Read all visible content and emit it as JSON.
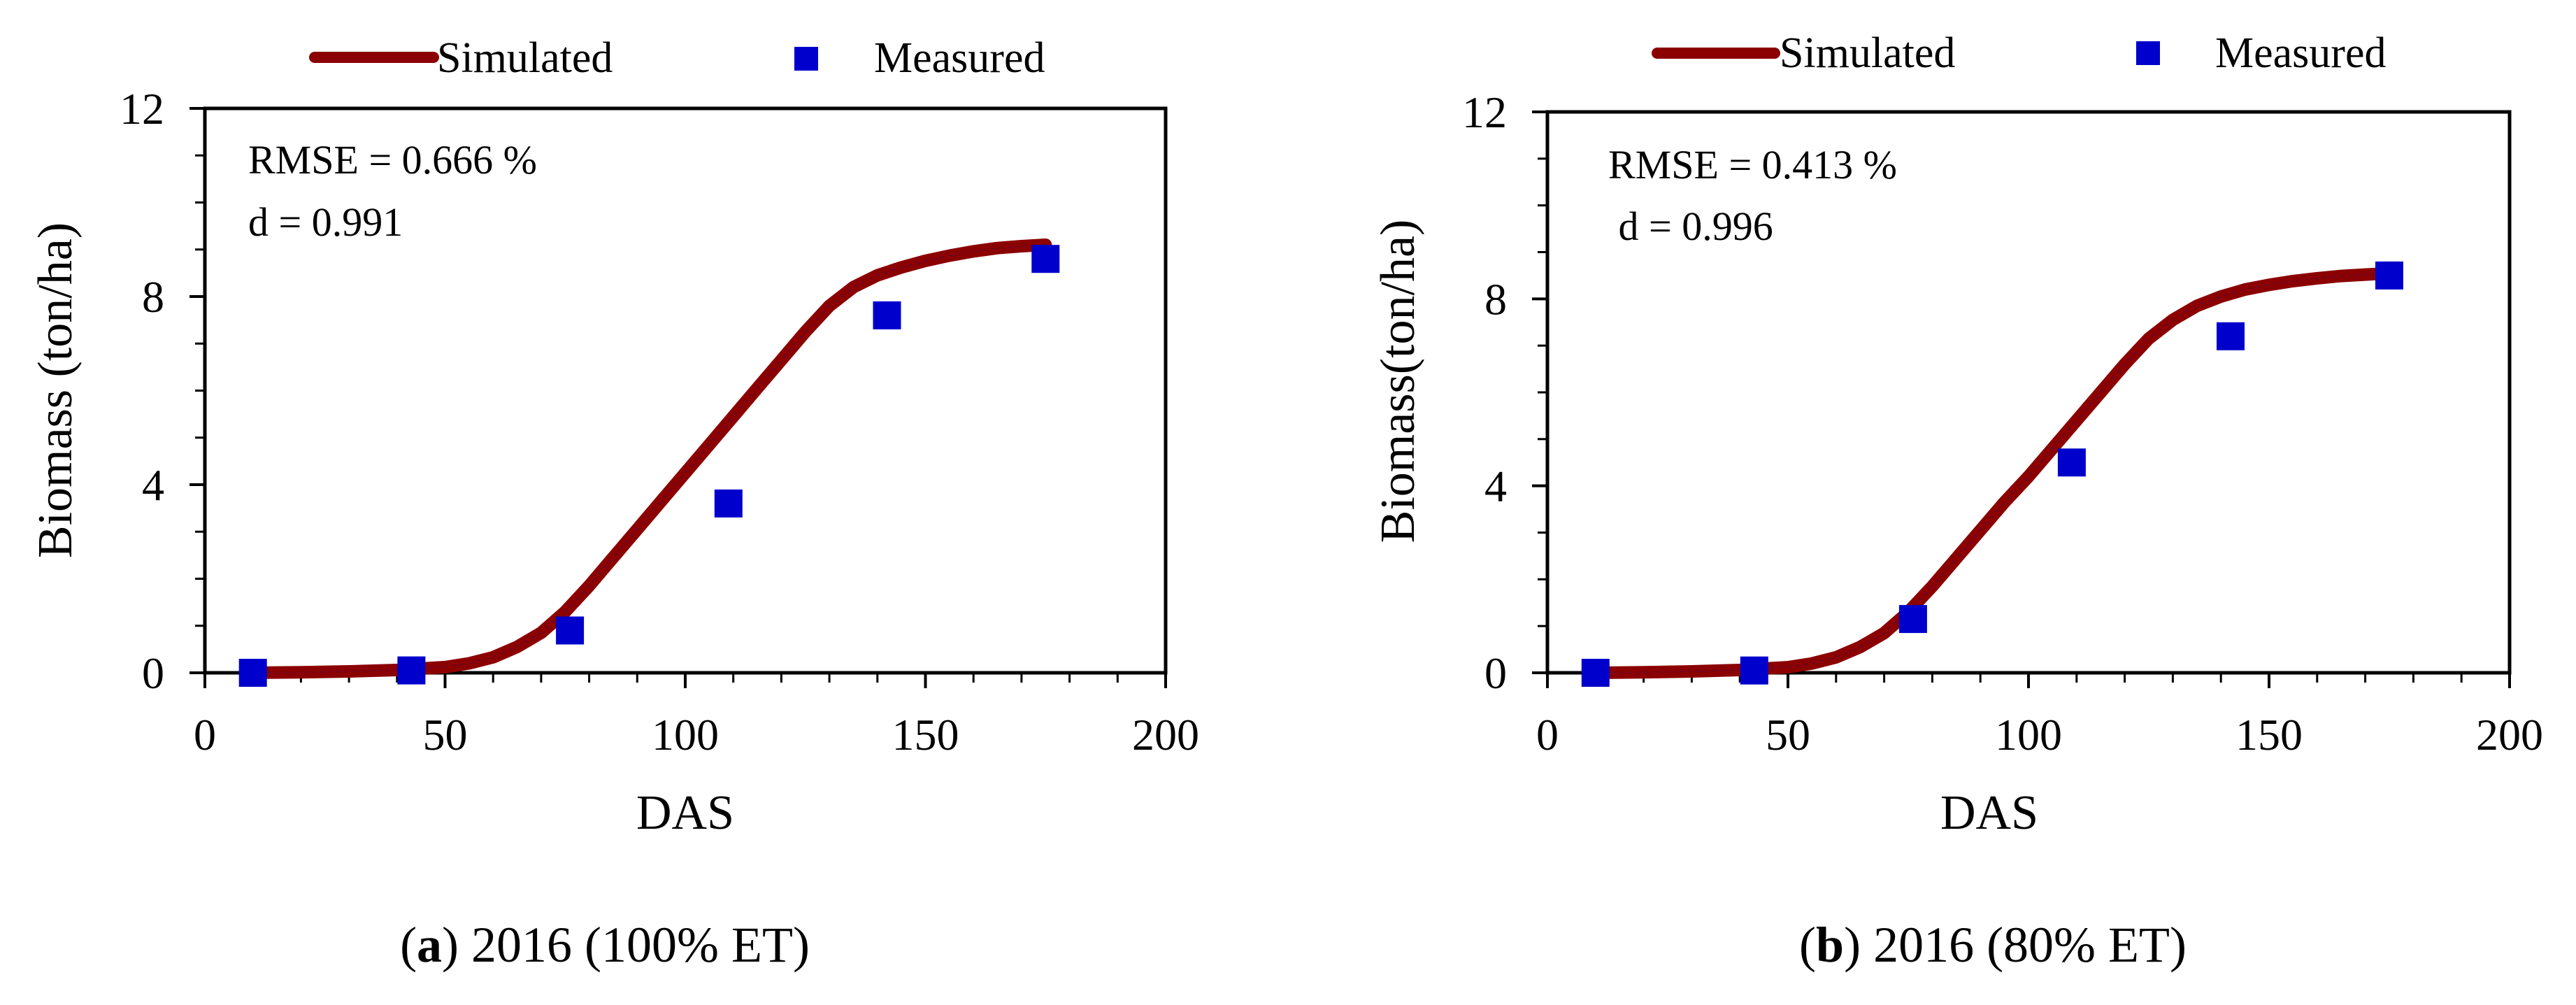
{
  "chart_data": [
    {
      "type": "line",
      "panel_letter": "a",
      "caption_text": " 2016 (100% ET)",
      "xlabel": "DAS",
      "ylabel": "Biomass (ton/ha)",
      "xlim": [
        0,
        200
      ],
      "ylim": [
        0,
        12
      ],
      "xticks": [
        0,
        50,
        100,
        150,
        200
      ],
      "yticks": [
        0,
        4,
        8,
        12
      ],
      "legend": {
        "simulated": "Simulated",
        "measured": "Measured",
        "placement": "top"
      },
      "annotations": [
        "RMSE = 0.666 %",
        "d = 0.991"
      ],
      "series": [
        {
          "name": "Simulated",
          "kind": "line",
          "color": "#8B0000",
          "x": [
            10,
            20,
            30,
            40,
            50,
            55,
            60,
            65,
            70,
            75,
            80,
            85,
            90,
            95,
            100,
            105,
            110,
            115,
            120,
            125,
            130,
            135,
            140,
            145,
            150,
            155,
            160,
            165,
            170,
            175
          ],
          "y": [
            0.0,
            0.01,
            0.03,
            0.06,
            0.12,
            0.2,
            0.33,
            0.55,
            0.85,
            1.3,
            1.85,
            2.45,
            3.05,
            3.65,
            4.25,
            4.85,
            5.45,
            6.05,
            6.65,
            7.25,
            7.8,
            8.2,
            8.45,
            8.62,
            8.76,
            8.87,
            8.96,
            9.03,
            9.07,
            9.1
          ]
        },
        {
          "name": "Measured",
          "kind": "scatter",
          "color": "#0000CC",
          "x": [
            10,
            43,
            76,
            109,
            142,
            175
          ],
          "y": [
            0.0,
            0.05,
            0.9,
            3.6,
            7.6,
            8.8
          ]
        }
      ]
    },
    {
      "type": "line",
      "panel_letter": "b",
      "caption_text": " 2016 (80% ET)",
      "xlabel": "DAS",
      "ylabel": "Biomass(ton/ha)",
      "xlim": [
        0,
        200
      ],
      "ylim": [
        0,
        12
      ],
      "xticks": [
        0,
        50,
        100,
        150,
        200
      ],
      "yticks": [
        0,
        4,
        8,
        12
      ],
      "legend": {
        "simulated": "Simulated",
        "measured": "Measured",
        "placement": "top"
      },
      "annotations": [
        "RMSE = 0.413 %",
        " d = 0.996"
      ],
      "series": [
        {
          "name": "Simulated",
          "kind": "line",
          "color": "#8B0000",
          "x": [
            10,
            20,
            30,
            40,
            50,
            55,
            60,
            65,
            70,
            75,
            80,
            85,
            90,
            95,
            100,
            105,
            110,
            115,
            120,
            125,
            130,
            135,
            140,
            145,
            150,
            155,
            160,
            165,
            170,
            175
          ],
          "y": [
            0.0,
            0.01,
            0.03,
            0.06,
            0.12,
            0.2,
            0.33,
            0.55,
            0.85,
            1.3,
            1.85,
            2.45,
            3.05,
            3.65,
            4.2,
            4.8,
            5.4,
            6.0,
            6.6,
            7.15,
            7.55,
            7.85,
            8.05,
            8.2,
            8.3,
            8.38,
            8.44,
            8.49,
            8.52,
            8.55
          ]
        },
        {
          "name": "Measured",
          "kind": "scatter",
          "color": "#0000CC",
          "x": [
            10,
            43,
            76,
            109,
            142,
            175
          ],
          "y": [
            0.0,
            0.05,
            1.15,
            4.5,
            7.2,
            8.5
          ]
        }
      ]
    }
  ]
}
